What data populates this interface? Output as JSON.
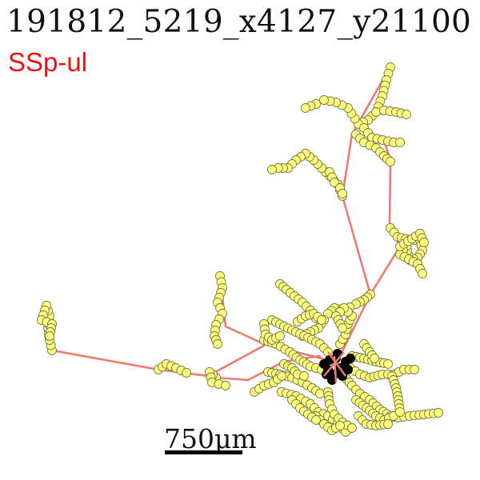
{
  "title": "191812_5219_x4127_y21100",
  "region": {
    "label": "SSp-ul",
    "color": "#ee1111"
  },
  "scale_bar": {
    "label": "750μm"
  },
  "colors": {
    "branch": "#f07a70",
    "node_fill": "#ffff80",
    "node_stroke": "#777744",
    "soma": "#000000"
  }
}
